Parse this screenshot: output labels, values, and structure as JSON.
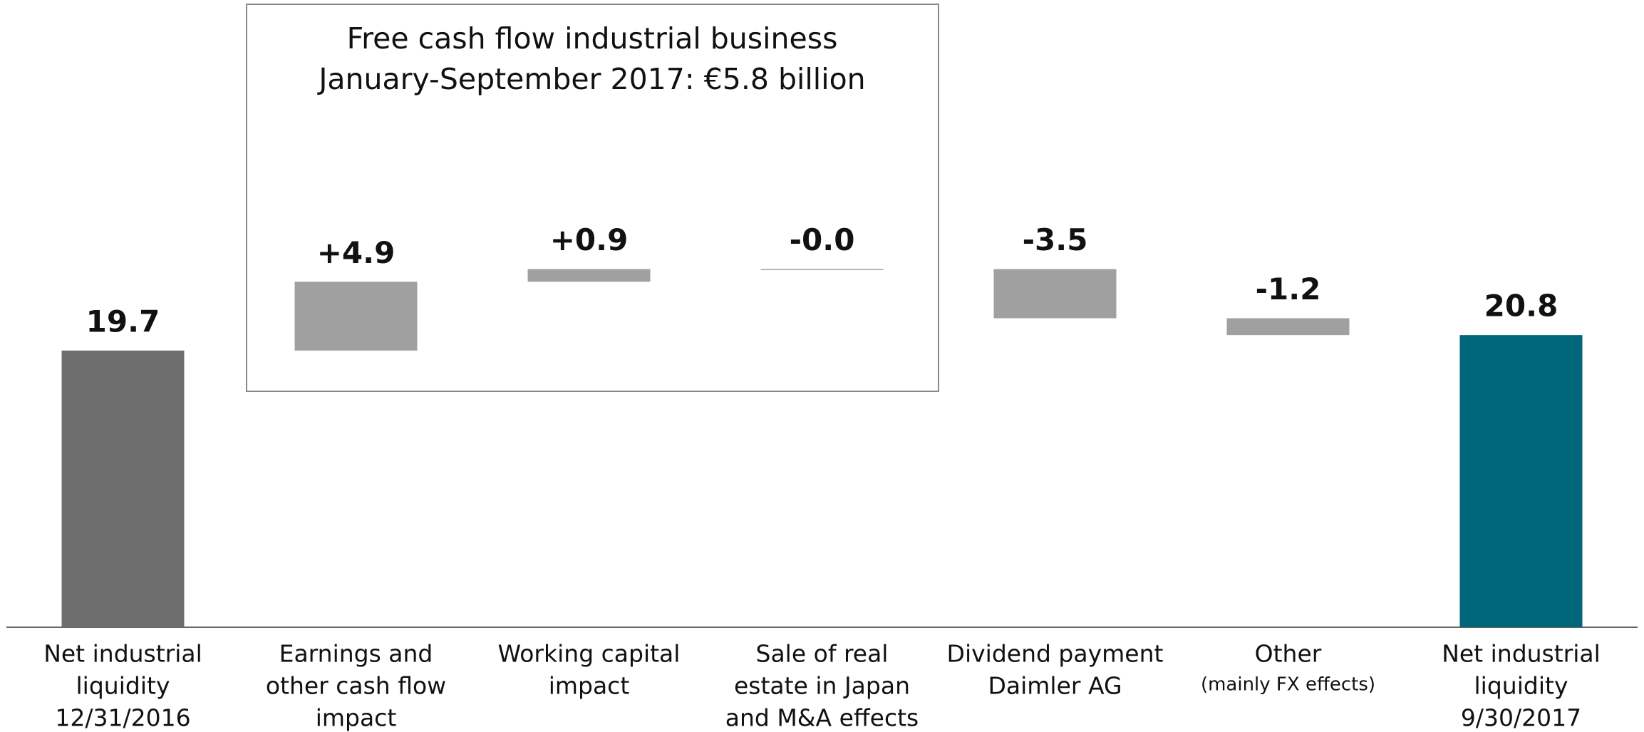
{
  "chart_data": {
    "type": "waterfall",
    "annotation": [
      "Free cash flow industrial business",
      "January-September 2017: €5.8 billion"
    ],
    "categories": [
      [
        "Net industrial",
        "liquidity",
        "12/31/2016"
      ],
      [
        "Earnings and",
        "other cash flow",
        "impact"
      ],
      [
        "Working capital",
        "impact"
      ],
      [
        "Sale of real",
        "estate in Japan",
        "and M&A effects"
      ],
      [
        "Dividend payment",
        "Daimler AG"
      ],
      [
        "Other",
        "(mainly FX effects)"
      ],
      [
        "Net industrial",
        "liquidity",
        "9/30/2017"
      ]
    ],
    "values": [
      19.7,
      4.9,
      0.9,
      -0.0,
      -3.5,
      -1.2,
      20.8
    ],
    "value_labels": [
      "19.7",
      "+4.9",
      "+0.9",
      "-0.0",
      "-3.5",
      "-1.2",
      "20.8"
    ],
    "colors": [
      "#6e6e6e",
      "#a0a0a0",
      "#a0a0a0",
      "#a0a0a0",
      "#a0a0a0",
      "#a0a0a0",
      "#00677a"
    ],
    "ylim": [
      0,
      44
    ]
  }
}
